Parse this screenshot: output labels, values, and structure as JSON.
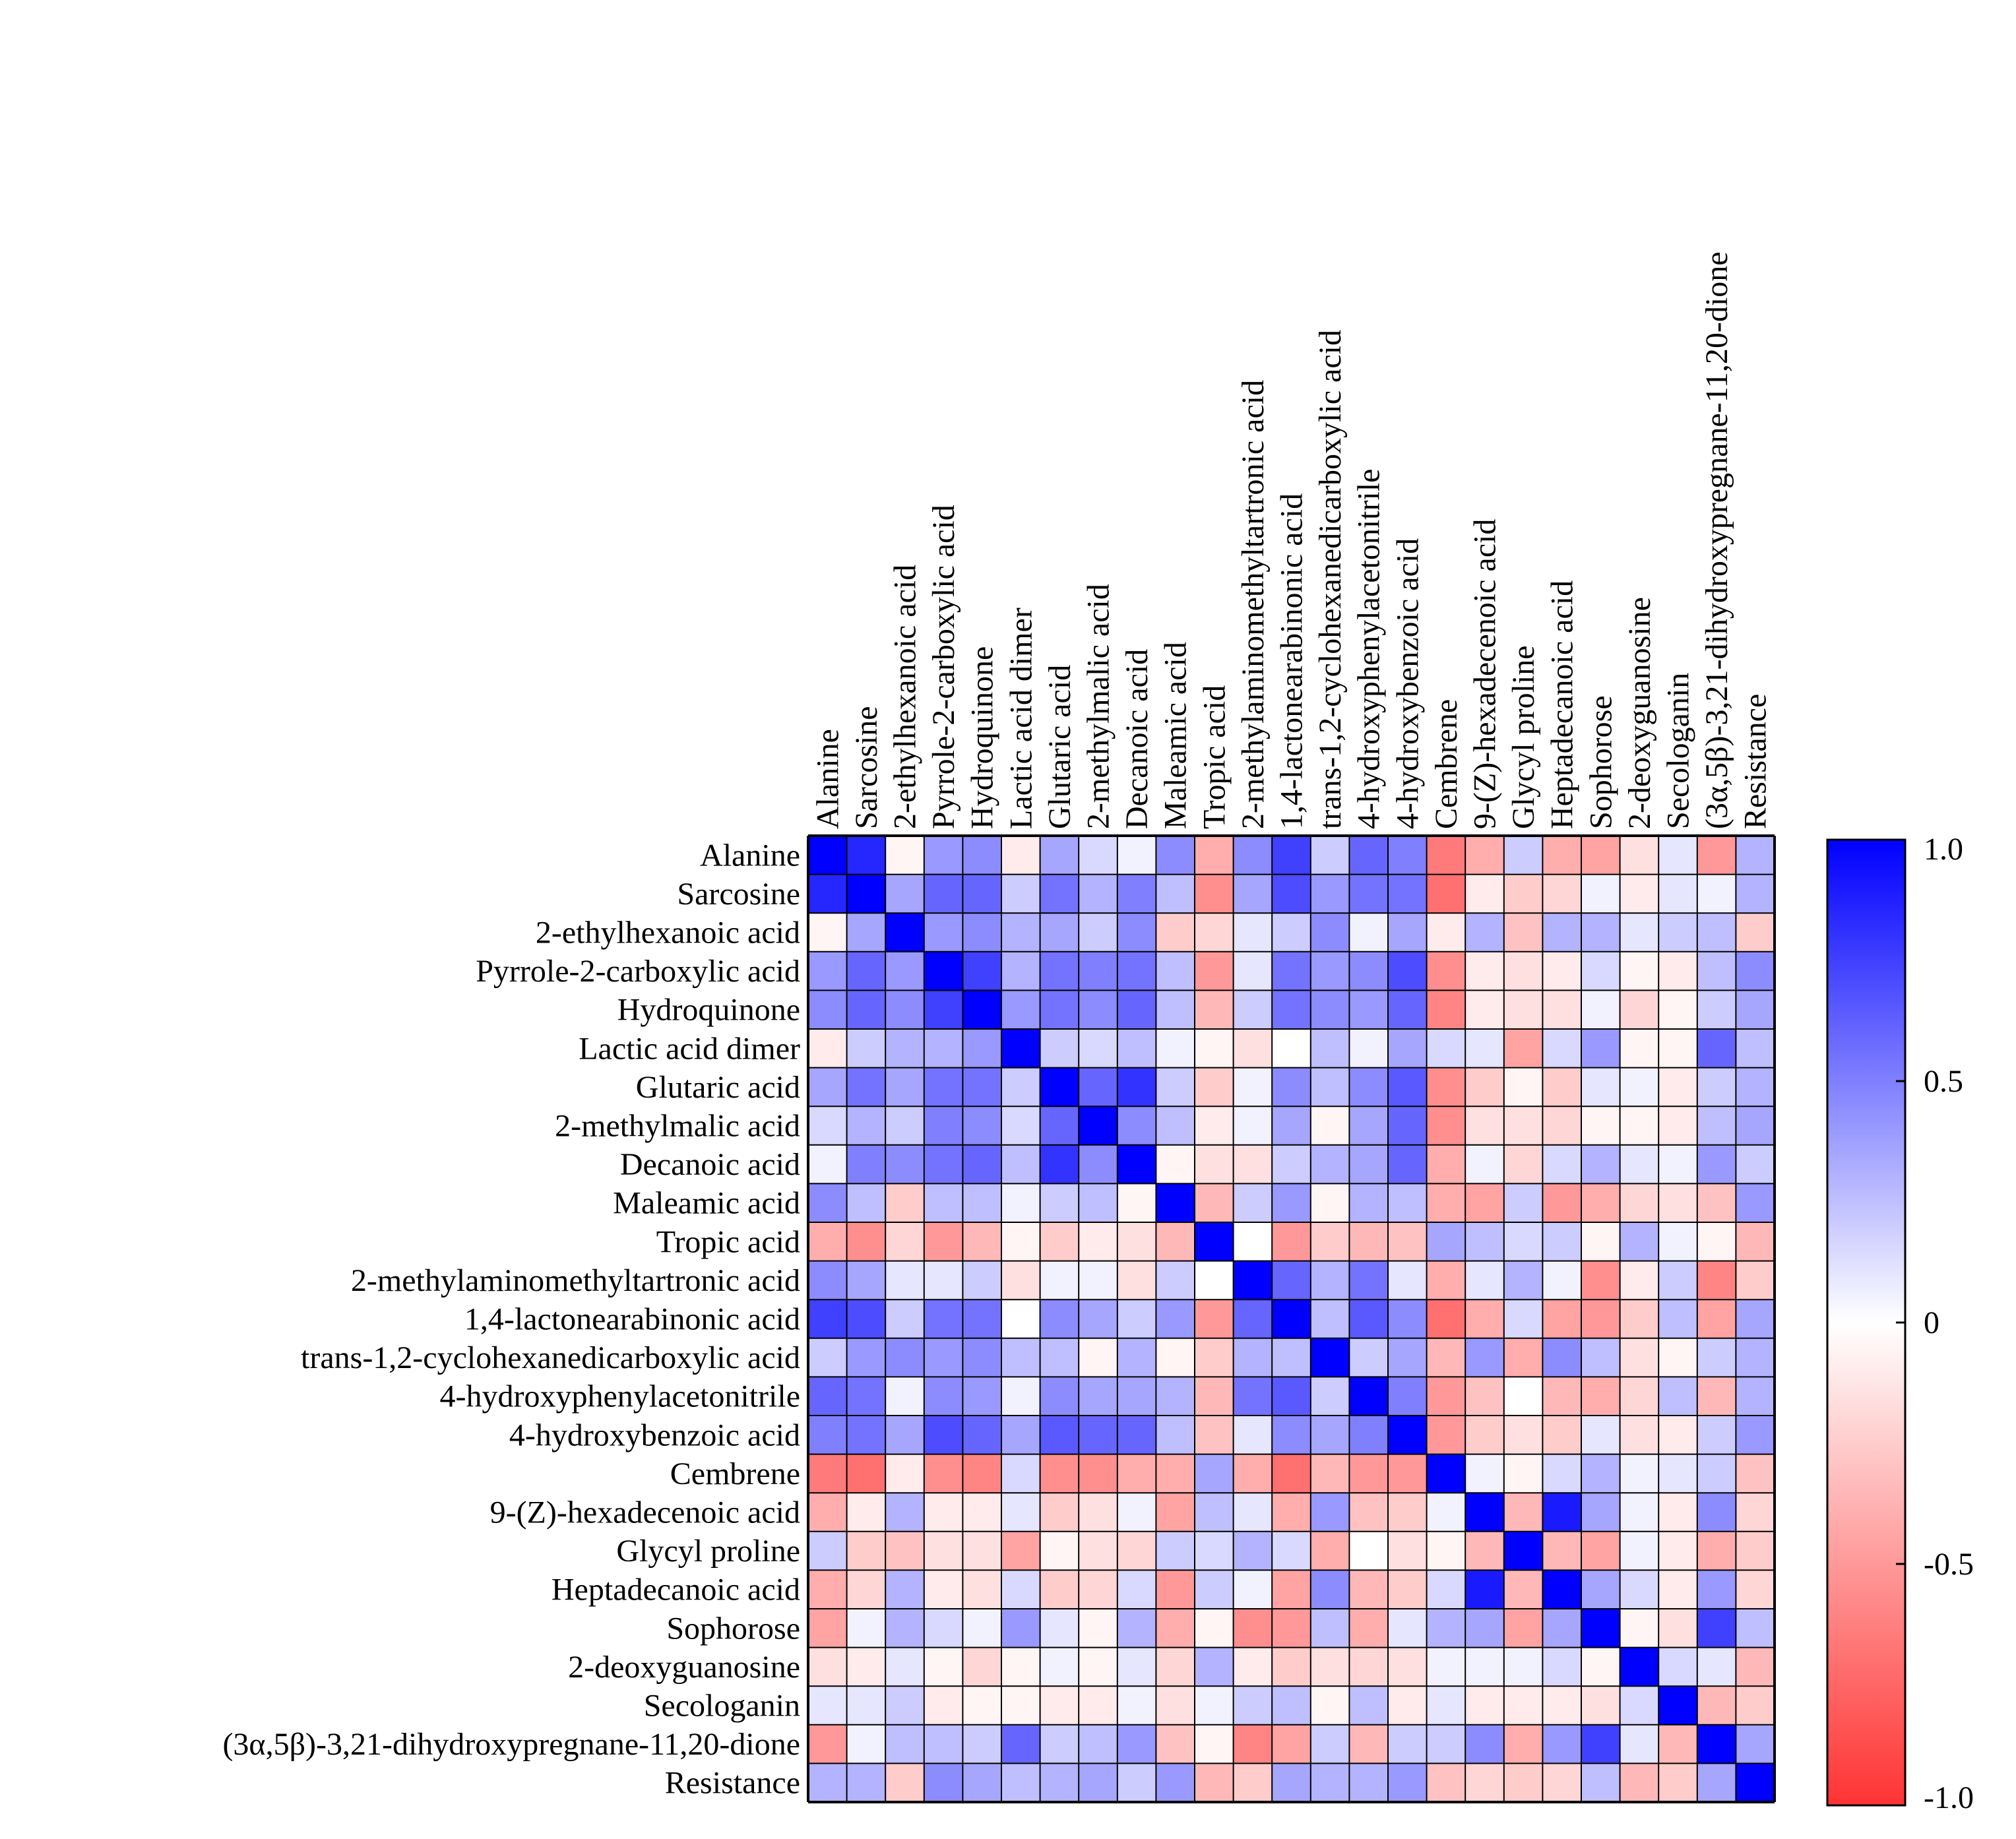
{
  "chart_data": {
    "type": "heatmap",
    "title": "",
    "labels": [
      "Alanine",
      "Sarcosine",
      "2-ethylhexanoic acid",
      "Pyrrole-2-carboxylic acid",
      "Hydroquinone",
      "Lactic acid dimer",
      "Glutaric acid",
      "2-methylmalic acid",
      "Decanoic acid",
      "Maleamic acid",
      "Tropic acid",
      "2-methylaminomethyltartronic acid",
      "1,4-lactonearabinonic acid",
      "trans-1,2-cyclohexanedicarboxylic acid",
      "4-hydroxyphenylacetonitrile",
      "4-hydroxybenzoic acid",
      "Cembrene",
      "9-(Z)-hexadecenoic acid",
      "Glycyl proline",
      "Heptadecanoic acid",
      "Sophorose",
      "2-deoxyguanosine",
      "Secologanin",
      "(3α,5β)-3,21-dihydroxypregnane-11,20-dione",
      "Resistance"
    ],
    "matrix": [
      [
        1.0,
        0.85,
        -0.05,
        0.4,
        0.45,
        -0.1,
        0.35,
        0.15,
        0.05,
        0.45,
        -0.4,
        0.45,
        0.75,
        0.2,
        0.6,
        0.5,
        -0.65,
        -0.4,
        0.2,
        -0.4,
        -0.45,
        -0.15,
        0.1,
        -0.5,
        0.3
      ],
      [
        0.85,
        1.0,
        0.35,
        0.6,
        0.6,
        0.2,
        0.55,
        0.3,
        0.5,
        0.25,
        -0.55,
        0.35,
        0.7,
        0.4,
        0.55,
        0.55,
        -0.7,
        -0.1,
        -0.25,
        -0.2,
        0.05,
        -0.1,
        0.1,
        0.05,
        0.3
      ],
      [
        -0.05,
        0.35,
        1.0,
        0.4,
        0.45,
        0.3,
        0.35,
        0.2,
        0.45,
        -0.25,
        -0.2,
        0.1,
        0.2,
        0.45,
        0.05,
        0.35,
        -0.1,
        0.3,
        -0.3,
        0.3,
        0.3,
        0.1,
        0.2,
        0.25,
        -0.25
      ],
      [
        0.4,
        0.6,
        0.4,
        1.0,
        0.75,
        0.3,
        0.55,
        0.5,
        0.55,
        0.25,
        -0.5,
        0.1,
        0.55,
        0.4,
        0.45,
        0.7,
        -0.55,
        -0.1,
        -0.15,
        -0.1,
        0.15,
        -0.05,
        -0.1,
        0.25,
        0.45
      ],
      [
        0.45,
        0.6,
        0.45,
        0.75,
        1.0,
        0.4,
        0.55,
        0.45,
        0.6,
        0.25,
        -0.35,
        0.2,
        0.55,
        0.45,
        0.4,
        0.6,
        -0.6,
        -0.1,
        -0.15,
        -0.15,
        0.05,
        -0.2,
        -0.05,
        0.2,
        0.35
      ],
      [
        -0.1,
        0.2,
        0.3,
        0.3,
        0.4,
        1.0,
        0.2,
        0.15,
        0.25,
        0.05,
        -0.05,
        -0.15,
        0.0,
        0.25,
        0.05,
        0.35,
        0.15,
        0.1,
        -0.45,
        0.15,
        0.4,
        -0.05,
        -0.05,
        0.6,
        0.25
      ],
      [
        0.35,
        0.55,
        0.35,
        0.55,
        0.55,
        0.2,
        1.0,
        0.6,
        0.8,
        0.2,
        -0.25,
        0.05,
        0.45,
        0.25,
        0.45,
        0.65,
        -0.55,
        -0.25,
        -0.05,
        -0.25,
        0.1,
        0.05,
        -0.1,
        0.2,
        0.3
      ],
      [
        0.15,
        0.3,
        0.2,
        0.5,
        0.45,
        0.15,
        0.6,
        1.0,
        0.45,
        0.25,
        -0.1,
        0.05,
        0.35,
        -0.05,
        0.35,
        0.6,
        -0.55,
        -0.15,
        -0.15,
        -0.2,
        -0.05,
        -0.05,
        -0.1,
        0.25,
        0.35
      ],
      [
        0.05,
        0.5,
        0.45,
        0.55,
        0.6,
        0.25,
        0.8,
        0.45,
        1.0,
        -0.05,
        -0.15,
        -0.15,
        0.2,
        0.3,
        0.35,
        0.6,
        -0.4,
        0.05,
        -0.2,
        0.15,
        0.3,
        0.1,
        0.05,
        0.4,
        0.2
      ],
      [
        0.45,
        0.25,
        -0.25,
        0.25,
        0.25,
        0.05,
        0.2,
        0.25,
        -0.05,
        1.0,
        -0.35,
        0.2,
        0.4,
        -0.05,
        0.3,
        0.25,
        -0.4,
        -0.45,
        0.2,
        -0.5,
        -0.4,
        -0.2,
        -0.15,
        -0.3,
        0.4
      ],
      [
        -0.4,
        -0.55,
        -0.2,
        -0.5,
        -0.35,
        -0.05,
        -0.25,
        -0.1,
        -0.15,
        -0.35,
        1.0,
        0.0,
        -0.5,
        -0.25,
        -0.35,
        -0.3,
        0.35,
        0.25,
        0.15,
        0.2,
        -0.05,
        0.3,
        0.05,
        -0.05,
        -0.35
      ],
      [
        0.45,
        0.35,
        0.1,
        0.1,
        0.2,
        -0.15,
        0.05,
        0.05,
        -0.15,
        0.2,
        0.0,
        1.0,
        0.6,
        0.3,
        0.55,
        0.1,
        -0.4,
        0.1,
        0.3,
        0.05,
        -0.55,
        -0.1,
        0.2,
        -0.6,
        -0.25
      ],
      [
        0.75,
        0.7,
        0.2,
        0.55,
        0.55,
        0.0,
        0.45,
        0.35,
        0.2,
        0.4,
        -0.5,
        0.6,
        1.0,
        0.25,
        0.65,
        0.45,
        -0.7,
        -0.4,
        0.15,
        -0.45,
        -0.5,
        -0.25,
        0.25,
        -0.45,
        0.35
      ],
      [
        0.2,
        0.4,
        0.45,
        0.4,
        0.45,
        0.25,
        0.25,
        -0.05,
        0.3,
        -0.05,
        -0.25,
        0.3,
        0.25,
        1.0,
        0.2,
        0.35,
        -0.35,
        0.4,
        -0.4,
        0.45,
        0.25,
        -0.15,
        -0.05,
        0.2,
        0.3
      ],
      [
        0.6,
        0.55,
        0.05,
        0.45,
        0.4,
        0.05,
        0.45,
        0.35,
        0.35,
        0.3,
        -0.35,
        0.55,
        0.65,
        0.2,
        1.0,
        0.5,
        -0.5,
        -0.3,
        0.0,
        -0.35,
        -0.4,
        -0.2,
        0.25,
        -0.35,
        0.3
      ],
      [
        0.5,
        0.55,
        0.35,
        0.7,
        0.6,
        0.35,
        0.65,
        0.6,
        0.6,
        0.25,
        -0.3,
        0.1,
        0.45,
        0.35,
        0.5,
        1.0,
        -0.5,
        -0.25,
        -0.15,
        -0.25,
        0.1,
        -0.15,
        -0.1,
        0.2,
        0.4
      ],
      [
        -0.65,
        -0.7,
        -0.1,
        -0.55,
        -0.6,
        0.15,
        -0.55,
        -0.55,
        -0.4,
        -0.4,
        0.35,
        -0.4,
        -0.7,
        -0.35,
        -0.5,
        -0.5,
        1.0,
        0.05,
        -0.05,
        0.15,
        0.3,
        0.05,
        0.1,
        0.2,
        -0.3
      ],
      [
        -0.4,
        -0.1,
        0.3,
        -0.1,
        -0.1,
        0.1,
        -0.25,
        -0.15,
        0.05,
        -0.45,
        0.25,
        0.1,
        -0.4,
        0.4,
        -0.3,
        -0.25,
        0.05,
        1.0,
        -0.35,
        0.9,
        0.35,
        0.05,
        -0.1,
        0.45,
        -0.2
      ],
      [
        0.2,
        -0.25,
        -0.3,
        -0.15,
        -0.15,
        -0.45,
        -0.05,
        -0.15,
        -0.2,
        0.2,
        0.15,
        0.3,
        0.15,
        -0.4,
        0.0,
        -0.15,
        -0.05,
        -0.35,
        1.0,
        -0.35,
        -0.45,
        0.05,
        -0.1,
        -0.4,
        -0.25
      ],
      [
        -0.4,
        -0.2,
        0.3,
        -0.1,
        -0.15,
        0.15,
        -0.25,
        -0.2,
        0.15,
        -0.5,
        0.2,
        0.05,
        -0.45,
        0.45,
        -0.35,
        -0.25,
        0.15,
        0.9,
        -0.35,
        1.0,
        0.35,
        0.15,
        -0.1,
        0.4,
        -0.2
      ],
      [
        -0.45,
        0.05,
        0.3,
        0.15,
        0.05,
        0.4,
        0.1,
        -0.05,
        0.3,
        -0.4,
        -0.05,
        -0.55,
        -0.5,
        0.25,
        -0.4,
        0.1,
        0.3,
        0.35,
        -0.45,
        0.35,
        1.0,
        -0.05,
        -0.15,
        0.75,
        0.25
      ],
      [
        -0.15,
        -0.1,
        0.1,
        -0.05,
        -0.2,
        -0.05,
        0.05,
        -0.05,
        0.1,
        -0.2,
        0.3,
        -0.1,
        -0.25,
        -0.15,
        -0.2,
        -0.15,
        0.05,
        0.05,
        0.05,
        0.15,
        -0.05,
        1.0,
        0.15,
        0.1,
        -0.35
      ],
      [
        0.1,
        0.1,
        0.2,
        -0.1,
        -0.05,
        -0.05,
        -0.1,
        -0.1,
        0.05,
        -0.15,
        0.05,
        0.2,
        0.25,
        -0.05,
        0.25,
        -0.1,
        0.1,
        -0.1,
        -0.1,
        -0.1,
        -0.15,
        0.15,
        1.0,
        -0.35,
        -0.25
      ],
      [
        -0.5,
        0.05,
        0.25,
        0.25,
        0.2,
        0.6,
        0.2,
        0.25,
        0.4,
        -0.3,
        -0.05,
        -0.6,
        -0.45,
        0.2,
        -0.35,
        0.2,
        0.2,
        0.45,
        -0.4,
        0.4,
        0.75,
        0.1,
        -0.35,
        1.0,
        0.35
      ],
      [
        0.3,
        0.3,
        -0.25,
        0.45,
        0.35,
        0.25,
        0.3,
        0.35,
        0.2,
        0.4,
        -0.35,
        -0.25,
        0.35,
        0.3,
        0.3,
        0.4,
        -0.3,
        -0.2,
        -0.25,
        -0.2,
        0.25,
        -0.35,
        -0.25,
        0.35,
        1.0
      ]
    ],
    "colorbar": {
      "range": [
        -1.0,
        1.0
      ],
      "ticks": [
        1.0,
        0.5,
        0,
        -0.5,
        -1.0
      ],
      "tick_labels": [
        "1.0",
        "0.5",
        "0",
        "-0.5",
        "-1.0"
      ]
    },
    "colors": {
      "positive": "#0000ff",
      "neutral": "#ffffff",
      "negative": "#ff3333",
      "grid": "#000000"
    }
  }
}
